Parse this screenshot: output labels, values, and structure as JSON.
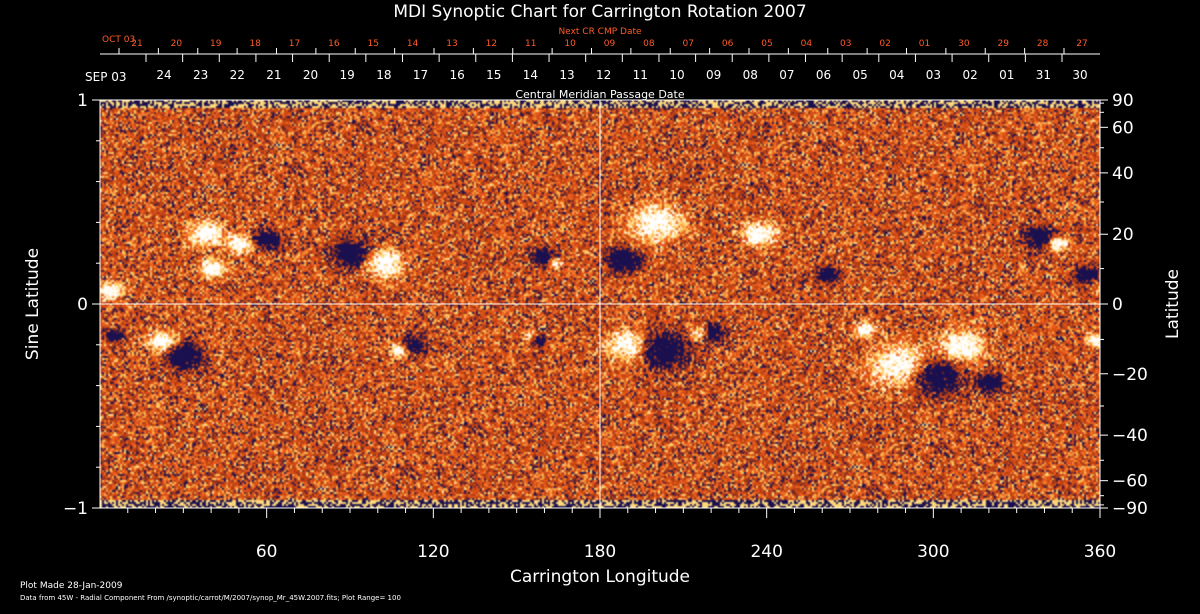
{
  "chart_data": {
    "type": "heatmap",
    "title": "MDI Synoptic Chart for Carrington Rotation 2007",
    "top_axis_title": "Next CR CMP Date",
    "top_axis_month": "OCT 03",
    "top_axis_ticks": [
      "21",
      "20",
      "19",
      "18",
      "17",
      "16",
      "15",
      "14",
      "13",
      "12",
      "11",
      "10",
      "09",
      "08",
      "07",
      "06",
      "05",
      "04",
      "03",
      "02",
      "01",
      "30",
      "29",
      "28",
      "27"
    ],
    "date_axis_month": "SEP 03",
    "date_axis_ticks": [
      "24",
      "23",
      "22",
      "21",
      "20",
      "19",
      "18",
      "17",
      "16",
      "15",
      "14",
      "13",
      "12",
      "11",
      "10",
      "09",
      "08",
      "07",
      "06",
      "05",
      "04",
      "03",
      "02",
      "01",
      "31",
      "30"
    ],
    "date_axis_title": "Central Meridian Passage Date",
    "xlabel": "Carrington Longitude",
    "xlim": [
      0,
      360
    ],
    "x_ticks": [
      60,
      120,
      180,
      240,
      300,
      360
    ],
    "ylabel_left": "Sine Latitude",
    "ylim_left": [
      -1,
      1
    ],
    "y_ticks_left": [
      "1",
      "0",
      "−1"
    ],
    "ylabel_right": "Latitude",
    "y_ticks_right": [
      90,
      60,
      40,
      20,
      0,
      -20,
      -40,
      -60,
      -90
    ],
    "y_tick_labels_right": [
      "90",
      "60",
      "40",
      "20",
      "0",
      "−20",
      "−40",
      "−60",
      "−90"
    ],
    "crosshair": {
      "longitude": 180,
      "sine_latitude": 0
    },
    "colormap": {
      "negative": "#1a1050",
      "low": "#b03a10",
      "mid": "#ee5a1a",
      "high": "#ffd060",
      "positive": "#ffffff"
    },
    "plot_range": 100,
    "regions": [
      {
        "lon": 3,
        "sinlat": 0.07,
        "polarity": 1,
        "size": 6
      },
      {
        "lon": 5,
        "sinlat": -0.15,
        "polarity": -1,
        "size": 4
      },
      {
        "lon": 38,
        "sinlat": 0.35,
        "polarity": 1,
        "size": 8
      },
      {
        "lon": 50,
        "sinlat": 0.3,
        "polarity": 1,
        "size": 6
      },
      {
        "lon": 60,
        "sinlat": 0.32,
        "polarity": -1,
        "size": 6
      },
      {
        "lon": 40,
        "sinlat": 0.18,
        "polarity": 1,
        "size": 6
      },
      {
        "lon": 30,
        "sinlat": -0.25,
        "polarity": -1,
        "size": 9
      },
      {
        "lon": 22,
        "sinlat": -0.18,
        "polarity": 1,
        "size": 7
      },
      {
        "lon": 90,
        "sinlat": 0.25,
        "polarity": -1,
        "size": 9
      },
      {
        "lon": 102,
        "sinlat": 0.2,
        "polarity": 1,
        "size": 9
      },
      {
        "lon": 112,
        "sinlat": -0.2,
        "polarity": -1,
        "size": 6
      },
      {
        "lon": 108,
        "sinlat": -0.22,
        "polarity": 1,
        "size": 5
      },
      {
        "lon": 160,
        "sinlat": 0.23,
        "polarity": -1,
        "size": 6
      },
      {
        "lon": 163,
        "sinlat": 0.21,
        "polarity": 1,
        "size": 4
      },
      {
        "lon": 155,
        "sinlat": -0.16,
        "polarity": 1,
        "size": 4
      },
      {
        "lon": 157,
        "sinlat": -0.17,
        "polarity": -1,
        "size": 4
      },
      {
        "lon": 188,
        "sinlat": 0.22,
        "polarity": -1,
        "size": 8
      },
      {
        "lon": 200,
        "sinlat": 0.4,
        "polarity": 1,
        "size": 12
      },
      {
        "lon": 202,
        "sinlat": -0.22,
        "polarity": -1,
        "size": 12
      },
      {
        "lon": 190,
        "sinlat": -0.2,
        "polarity": 1,
        "size": 10
      },
      {
        "lon": 220,
        "sinlat": -0.14,
        "polarity": -1,
        "size": 6
      },
      {
        "lon": 216,
        "sinlat": -0.14,
        "polarity": 1,
        "size": 5
      },
      {
        "lon": 237,
        "sinlat": 0.35,
        "polarity": 1,
        "size": 8
      },
      {
        "lon": 262,
        "sinlat": 0.15,
        "polarity": -1,
        "size": 5
      },
      {
        "lon": 275,
        "sinlat": -0.12,
        "polarity": 1,
        "size": 5
      },
      {
        "lon": 288,
        "sinlat": -0.3,
        "polarity": 1,
        "size": 14
      },
      {
        "lon": 300,
        "sinlat": -0.35,
        "polarity": -1,
        "size": 12
      },
      {
        "lon": 310,
        "sinlat": -0.2,
        "polarity": 1,
        "size": 10
      },
      {
        "lon": 320,
        "sinlat": -0.38,
        "polarity": -1,
        "size": 6
      },
      {
        "lon": 338,
        "sinlat": 0.33,
        "polarity": -1,
        "size": 7
      },
      {
        "lon": 344,
        "sinlat": 0.3,
        "polarity": 1,
        "size": 5
      },
      {
        "lon": 355,
        "sinlat": 0.15,
        "polarity": -1,
        "size": 5
      },
      {
        "lon": 358,
        "sinlat": -0.17,
        "polarity": 1,
        "size": 4
      }
    ]
  },
  "footer": {
    "plot_made": "Plot Made 28-Jan-2009",
    "data_note": "Data from 45W - Radial Component From /synoptic/carrot/M/2007/synop_Mr_45W.2007.fits; Plot Range=  100"
  }
}
